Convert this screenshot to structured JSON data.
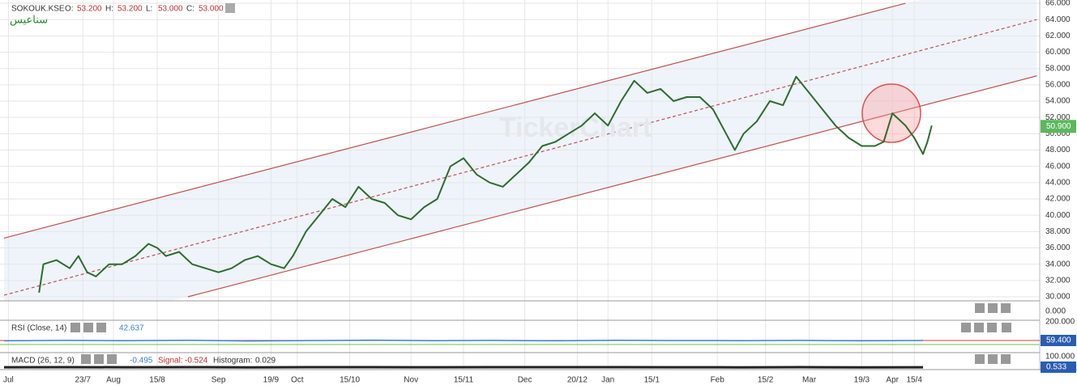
{
  "chart_data": [
    {
      "type": "line",
      "symbol": "SOKOUK.KSE",
      "arabic_name": "سناعيس",
      "watermark": "TickerChart",
      "ohlc": [
        {
          "name": "O:",
          "value": 53.2,
          "label": "53.200"
        },
        {
          "name": "H:",
          "value": 53.2,
          "label": "53.200"
        },
        {
          "name": "L:",
          "value": 53.0,
          "label": "53.000"
        },
        {
          "name": "C:",
          "value": 53.0,
          "label": "53.000"
        }
      ],
      "last_price": {
        "value": 50.9,
        "label": "50.900"
      },
      "color": "#2e6b2e",
      "x": [
        8,
        9,
        12,
        15,
        17,
        19,
        21,
        24,
        27,
        30,
        33,
        35,
        37,
        40,
        43,
        46,
        49,
        52,
        55,
        58,
        61,
        64,
        66,
        69,
        72,
        75,
        78,
        81,
        84,
        87,
        90,
        93,
        96,
        99,
        102,
        105,
        108,
        111,
        114,
        117,
        120,
        123,
        126,
        129,
        132,
        135,
        138,
        141,
        144,
        147,
        150,
        153,
        156,
        159,
        162,
        165,
        167,
        169,
        172,
        175,
        178,
        181,
        184,
        187,
        190,
        193,
        196,
        199,
        201,
        203,
        206,
        208,
        210,
        211,
        212
      ],
      "values": [
        30.5,
        34,
        34.5,
        33.5,
        35,
        33,
        32.5,
        34,
        34,
        35,
        36.5,
        36,
        35,
        35.5,
        34,
        33.5,
        33,
        33.5,
        34.5,
        35,
        34,
        33.5,
        35,
        38,
        40,
        42,
        41,
        43.5,
        42,
        41.5,
        40,
        39.5,
        41,
        42,
        46,
        47,
        45,
        44,
        43.5,
        45,
        46.5,
        48.5,
        49,
        50,
        51,
        52.5,
        51,
        54,
        56.5,
        55,
        55.5,
        54,
        54.5,
        54.5,
        53,
        50,
        48,
        50,
        51.5,
        54,
        53.5,
        57,
        55,
        53,
        51,
        49.5,
        48.5,
        48.5,
        49,
        52.5,
        51,
        49.5,
        47.5,
        49,
        51
      ],
      "channel": [
        {
          "x": [
            0,
            206
          ],
          "values": [
            37.2,
            66
          ],
          "color": "#c0504d",
          "dashed": false
        },
        {
          "x": [
            0,
            236
          ],
          "values": [
            30.2,
            64.0
          ],
          "color": "#c0504d",
          "dashed": true
        },
        {
          "x": [
            42,
            236
          ],
          "values": [
            30,
            57.1
          ],
          "color": "#c0504d",
          "dashed": false
        }
      ],
      "xlim": [
        0,
        236
      ],
      "ylim": [
        29.8,
        66.4
      ],
      "xticks": [
        {
          "value": 1,
          "label": "Jul"
        },
        {
          "value": 18,
          "label": "23/7"
        },
        {
          "value": 25,
          "label": "Aug"
        },
        {
          "value": 35,
          "label": "15/8"
        },
        {
          "value": 49,
          "label": "Sep"
        },
        {
          "value": 61,
          "label": "19/9"
        },
        {
          "value": 67,
          "label": "Oct"
        },
        {
          "value": 79,
          "label": "15/10"
        },
        {
          "value": 93,
          "label": "Nov"
        },
        {
          "value": 105,
          "label": "15/11"
        },
        {
          "value": 119,
          "label": "Dec"
        },
        {
          "value": 131,
          "label": "20/12"
        },
        {
          "value": 138,
          "label": "Jan"
        },
        {
          "value": 148,
          "label": "15/1"
        },
        {
          "value": 163,
          "label": "Feb"
        },
        {
          "value": 174,
          "label": "15/2"
        },
        {
          "value": 184,
          "label": "Mar"
        },
        {
          "value": 196,
          "label": "19/3"
        },
        {
          "value": 203,
          "label": "Apr"
        },
        {
          "value": 208,
          "label": "15/4"
        }
      ],
      "yticks": [
        {
          "value": 30,
          "label": "30.000"
        },
        {
          "value": 32,
          "label": "32.000"
        },
        {
          "value": 34,
          "label": "34.000"
        },
        {
          "value": 36,
          "label": "36.000"
        },
        {
          "value": 38,
          "label": "38.000"
        },
        {
          "value": 40,
          "label": "40.000"
        },
        {
          "value": 42,
          "label": "42.000"
        },
        {
          "value": 44,
          "label": "44.000"
        },
        {
          "value": 46,
          "label": "46.000"
        },
        {
          "value": 48,
          "label": "48.000"
        },
        {
          "value": 50,
          "label": "50.000"
        },
        {
          "value": 52,
          "label": "52.000"
        },
        {
          "value": 54,
          "label": "54.000"
        },
        {
          "value": 56,
          "label": "56.000"
        },
        {
          "value": 58,
          "label": "58.000"
        },
        {
          "value": 60,
          "label": "60.000"
        },
        {
          "value": 62,
          "label": "62.000"
        },
        {
          "value": 64,
          "label": "64.000"
        },
        {
          "value": 66,
          "label": "66.000"
        }
      ],
      "strip_tick": {
        "value": 0,
        "label": "0.000"
      },
      "grid": true
    },
    {
      "type": "line",
      "title": "RSI  (Close, 14)",
      "reading": {
        "value": 42.637,
        "label": "42.637"
      },
      "badge": {
        "value": 59.4,
        "label": "59.400"
      },
      "color": "#3a7fd5",
      "x": [
        0,
        14,
        28,
        42,
        56,
        70,
        84,
        98,
        112,
        126,
        140,
        154,
        168,
        182,
        196,
        210
      ],
      "values": [
        57,
        60,
        58,
        61,
        56,
        59,
        62,
        58,
        60,
        57,
        61,
        59,
        58,
        60,
        57,
        59.4
      ],
      "xlim": [
        0,
        236
      ],
      "ylim": [
        -20,
        200
      ],
      "yticks": [
        {
          "value": 200,
          "label": "200.000"
        }
      ]
    },
    {
      "type": "line",
      "title": "MACD  (26, 12, 9)",
      "reading": {
        "value": -0.495,
        "label": "-0.495"
      },
      "signal_name": "Signal:",
      "signal": {
        "value": -0.524,
        "label": "-0.524"
      },
      "histogram_name": "Histogram:",
      "histogram": 0.029,
      "badge": {
        "value": 0.533,
        "label": "0.533"
      },
      "color": "#222222",
      "x": [
        0,
        14,
        28,
        42,
        56,
        70,
        84,
        98,
        112,
        126,
        140,
        154,
        168,
        182,
        196,
        210
      ],
      "values": [
        0.2,
        0.5,
        -0.3,
        0.4,
        -0.6,
        0.8,
        0.6,
        -0.2,
        0.7,
        0.9,
        0.4,
        -0.1,
        -0.8,
        0.3,
        -0.7,
        -0.495
      ],
      "xlim": [
        0,
        236
      ],
      "ylim": [
        -30,
        100
      ],
      "yticks": [
        {
          "value": 100,
          "label": "100.000"
        }
      ]
    }
  ]
}
